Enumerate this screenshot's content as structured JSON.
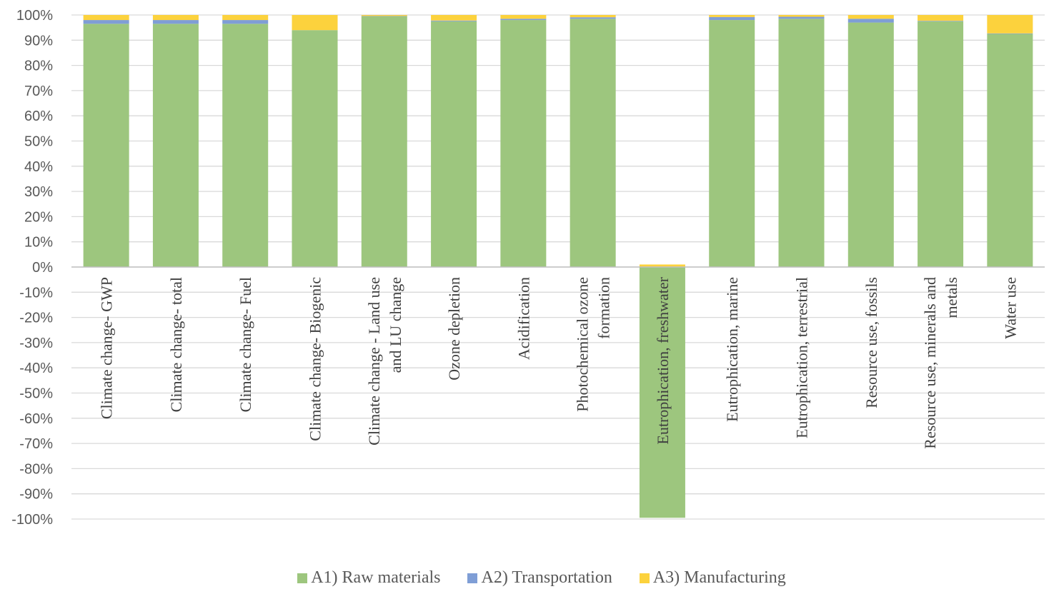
{
  "chart_data": {
    "type": "bar",
    "stacked": true,
    "categories": [
      [
        "Climate change- GWP"
      ],
      [
        "Climate change- total"
      ],
      [
        "Climate change- Fuel"
      ],
      [
        "Climate change- Biogenic"
      ],
      [
        "Climate change - Land use",
        "and LU change"
      ],
      [
        "Ozone depletion"
      ],
      [
        "Acidification"
      ],
      [
        "Photochemical ozone",
        "formation"
      ],
      [
        "Eutrophication, freshwater"
      ],
      [
        "Eutrophication, marine"
      ],
      [
        "Eutrophication, terrestrial"
      ],
      [
        "Resource use, fossils"
      ],
      [
        "Resource use, minerals and",
        "metals"
      ],
      [
        "Water use"
      ]
    ],
    "series": [
      {
        "name": "A1) Raw materials",
        "color": "#9dc67e",
        "values": [
          96.5,
          96.5,
          96.5,
          94.0,
          99.5,
          97.5,
          98.0,
          98.5,
          -99.5,
          98.0,
          98.5,
          97.0,
          97.5,
          92.5
        ]
      },
      {
        "name": "A2) Transportation",
        "color": "#7f9ed6",
        "values": [
          1.5,
          1.5,
          1.5,
          0.0,
          0.1,
          0.3,
          0.5,
          0.6,
          0.1,
          1.2,
          0.8,
          1.5,
          0.2,
          0.2
        ]
      },
      {
        "name": "A3) Manufacturing",
        "color": "#fcd23d",
        "values": [
          2.0,
          2.0,
          2.0,
          6.0,
          0.4,
          2.2,
          1.5,
          0.9,
          0.9,
          0.8,
          0.7,
          1.5,
          2.3,
          7.3
        ]
      }
    ],
    "ylim": [
      -100,
      100
    ],
    "ytick_step": 10,
    "ytick_format": "percent",
    "grid": true,
    "legend_position": "bottom"
  }
}
